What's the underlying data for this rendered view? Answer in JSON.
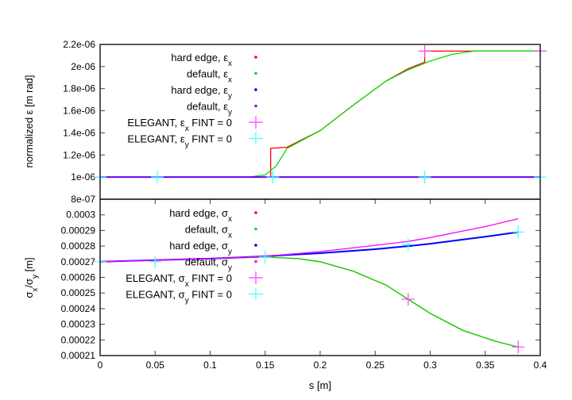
{
  "chart_data": [
    {
      "type": "line",
      "panel": "top",
      "title": "",
      "xlabel": "s [m]",
      "ylabel": "normalized ε [m rad]",
      "xlim": [
        0,
        0.4
      ],
      "ylim": [
        8e-07,
        2.2e-06
      ],
      "yticks": [
        "8e-07",
        "1e-06",
        "1.2e-06",
        "1.4e-06",
        "1.6e-06",
        "1.8e-06",
        "2e-06",
        "2.2e-06"
      ],
      "ytick_values": [
        8e-07,
        1e-06,
        1.2e-06,
        1.4e-06,
        1.6e-06,
        1.8e-06,
        2e-06,
        2.2e-06
      ],
      "grid": false,
      "legend_position": "upper left (inside)",
      "series": [
        {
          "name": "hard edge, ε_x",
          "label_main": "hard edge, ε",
          "label_sub": "x",
          "color": "#ff0000",
          "style": "line",
          "x": [
            0,
            0.155,
            0.155,
            0.17,
            0.2,
            0.23,
            0.26,
            0.28,
            0.295,
            0.295,
            0.4
          ],
          "y": [
            1e-06,
            1e-06,
            1.26e-06,
            1.27e-06,
            1.42e-06,
            1.65e-06,
            1.87e-06,
            1.98e-06,
            2.04e-06,
            2.14e-06,
            2.14e-06
          ]
        },
        {
          "name": "default, ε_x",
          "label_main": "default, ε",
          "label_sub": "x",
          "color": "#00e000",
          "style": "line",
          "x": [
            0,
            0.135,
            0.15,
            0.16,
            0.17,
            0.2,
            0.23,
            0.26,
            0.28,
            0.3,
            0.32,
            0.34,
            0.4
          ],
          "y": [
            1e-06,
            1e-06,
            1.02e-06,
            1.1e-06,
            1.26e-06,
            1.42e-06,
            1.65e-06,
            1.87e-06,
            1.97e-06,
            2.05e-06,
            2.11e-06,
            2.14e-06,
            2.14e-06
          ]
        },
        {
          "name": "hard edge, ε_y",
          "label_main": "hard edge, ε",
          "label_sub": "y",
          "color": "#0000ff",
          "style": "line",
          "x": [
            0,
            0.4
          ],
          "y": [
            1e-06,
            1e-06
          ]
        },
        {
          "name": "default, ε_y",
          "label_main": "default, ε",
          "label_sub": "y",
          "color": "#a000e0",
          "style": "line",
          "x": [
            0,
            0.4
          ],
          "y": [
            1e-06,
            1e-06
          ]
        },
        {
          "name": "ELEGANT, ε_x FINT = 0",
          "label_main": "ELEGANT, ε",
          "label_sub": "x",
          "label_tail": " FINT = 0",
          "color": "#ff40ff",
          "style": "plus",
          "x": [
            0,
            0.295,
            0.4
          ],
          "y": [
            1e-06,
            2.14e-06,
            2.14e-06
          ]
        },
        {
          "name": "ELEGANT, ε_y FINT = 0",
          "label_main": "ELEGANT, ε",
          "label_sub": "y",
          "label_tail": " FINT = 0",
          "color": "#40ffff",
          "style": "plus",
          "x": [
            0,
            0.052,
            0.157,
            0.295,
            0.4
          ],
          "y": [
            1e-06,
            1e-06,
            1e-06,
            1e-06,
            1e-06
          ]
        }
      ]
    },
    {
      "type": "line",
      "panel": "bottom",
      "title": "",
      "xlabel": "s [m]",
      "ylabel": "σ_x/σ_y [m]",
      "xlim": [
        0,
        0.4
      ],
      "ylim": [
        0.00021,
        0.00031
      ],
      "xticks": [
        "0",
        "0.05",
        "0.1",
        "0.15",
        "0.2",
        "0.25",
        "0.3",
        "0.35",
        "0.4"
      ],
      "xtick_values": [
        0,
        0.05,
        0.1,
        0.15,
        0.2,
        0.25,
        0.3,
        0.35,
        0.4
      ],
      "yticks": [
        "0.00021",
        "0.00022",
        "0.00023",
        "0.00024",
        "0.00025",
        "0.00026",
        "0.00027",
        "0.00028",
        "0.00029",
        "0.0003"
      ],
      "ytick_values": [
        0.00021,
        0.00022,
        0.00023,
        0.00024,
        0.00025,
        0.00026,
        0.00027,
        0.00028,
        0.00029,
        0.0003
      ],
      "grid": false,
      "legend_position": "upper left (inside)",
      "series": [
        {
          "name": "hard edge, σ_x",
          "label_main": "hard edge, σ",
          "label_sub": "x",
          "color": "#ff0000",
          "style": "line",
          "x": [
            0,
            0.05,
            0.1,
            0.15,
            0.18,
            0.2,
            0.23,
            0.26,
            0.28,
            0.3,
            0.33,
            0.36,
            0.38
          ],
          "y": [
            0.00027,
            0.000271,
            0.000272,
            0.000273,
            0.000272,
            0.00027,
            0.000264,
            0.000255,
            0.000246,
            0.000237,
            0.000226,
            0.000219,
            0.0002155
          ]
        },
        {
          "name": "default, σ_x",
          "label_main": "default, σ",
          "label_sub": "x",
          "color": "#00e000",
          "style": "line",
          "x": [
            0,
            0.05,
            0.1,
            0.15,
            0.18,
            0.2,
            0.23,
            0.26,
            0.28,
            0.3,
            0.33,
            0.36,
            0.38
          ],
          "y": [
            0.00027,
            0.000271,
            0.000272,
            0.000273,
            0.000272,
            0.00027,
            0.000264,
            0.000255,
            0.000246,
            0.000237,
            0.000226,
            0.000219,
            0.0002155
          ]
        },
        {
          "name": "hard edge, σ_y",
          "label_main": "hard edge, σ",
          "label_sub": "y",
          "color": "#0000ff",
          "style": "line",
          "x": [
            0,
            0.05,
            0.1,
            0.15,
            0.2,
            0.25,
            0.28,
            0.3,
            0.35,
            0.38
          ],
          "y": [
            0.00027,
            0.000271,
            0.000272,
            0.0002735,
            0.0002755,
            0.000278,
            0.00028,
            0.0002815,
            0.000286,
            0.000289
          ]
        },
        {
          "name": "default, σ_y",
          "label_main": "default, σ",
          "label_sub": "y",
          "color": "#ff00ff",
          "style": "line",
          "x": [
            0,
            0.05,
            0.1,
            0.15,
            0.2,
            0.25,
            0.28,
            0.3,
            0.35,
            0.38
          ],
          "y": [
            0.00027,
            0.000271,
            0.000272,
            0.0002735,
            0.0002765,
            0.0002805,
            0.000283,
            0.0002855,
            0.0002925,
            0.0002975
          ]
        },
        {
          "name": "ELEGANT, σ_x FINT = 0",
          "label_main": "ELEGANT, σ",
          "label_sub": "x",
          "label_tail": " FINT = 0",
          "color": "#ff40ff",
          "style": "plus",
          "x": [
            0.28,
            0.38
          ],
          "y": [
            0.000246,
            0.0002155
          ]
        },
        {
          "name": "ELEGANT, σ_y FINT = 0",
          "label_main": "ELEGANT, σ",
          "label_sub": "y",
          "label_tail": " FINT = 0",
          "color": "#40ffff",
          "style": "plus",
          "x": [
            0,
            0.05,
            0.15,
            0.28,
            0.38
          ],
          "y": [
            0.00027,
            0.00027,
            0.000273,
            0.000281,
            0.000289
          ]
        }
      ]
    }
  ],
  "labels": {
    "top_ylabel": "normalized ε [m rad]",
    "bottom_ylabel_main": "σ",
    "bottom_ylabel_sub1": "x",
    "bottom_ylabel_mid": "/σ",
    "bottom_ylabel_sub2": "y",
    "bottom_ylabel_tail": " [m]",
    "xlabel": "s [m]"
  }
}
